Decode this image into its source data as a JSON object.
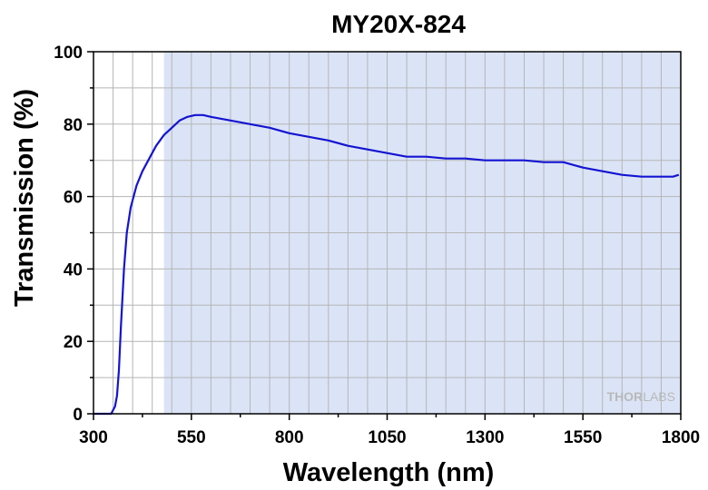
{
  "chart_data": {
    "type": "line",
    "title": "MY20X-824",
    "xlabel": "Wavelength (nm)",
    "ylabel": "Transmission (%)",
    "xlim": [
      300,
      1800
    ],
    "ylim": [
      0,
      100
    ],
    "x_ticks": [
      "300",
      "550",
      "800",
      "1050",
      "1300",
      "1550",
      "1800"
    ],
    "y_ticks": [
      "0",
      "20",
      "40",
      "60",
      "80",
      "100"
    ],
    "grid": true,
    "shaded_band": {
      "x_start": 480,
      "x_end": 1800,
      "color": "#dbe4f6"
    },
    "series": [
      {
        "color": "#1414d2",
        "x": [
          300,
          345,
          355,
          360,
          365,
          370,
          378,
          385,
          395,
          410,
          425,
          445,
          460,
          480,
          500,
          520,
          540,
          560,
          580,
          600,
          650,
          700,
          750,
          800,
          850,
          900,
          950,
          1000,
          1050,
          1100,
          1150,
          1200,
          1250,
          1300,
          1350,
          1400,
          1450,
          1500,
          1550,
          1600,
          1650,
          1700,
          1750,
          1780,
          1795
        ],
        "y": [
          0,
          0,
          2,
          5,
          12,
          24,
          40,
          50,
          57,
          63,
          67,
          71,
          74,
          77,
          79,
          81,
          82,
          82.5,
          82.5,
          82,
          81,
          80,
          79,
          77.5,
          76.5,
          75.5,
          74,
          73,
          72,
          71,
          71,
          70.5,
          70.5,
          70,
          70,
          70,
          69.5,
          69.5,
          68,
          67,
          66,
          65.5,
          65.5,
          65.5,
          66
        ]
      }
    ]
  },
  "watermark": {
    "brand_a": "THOR",
    "brand_b": "LABS"
  }
}
